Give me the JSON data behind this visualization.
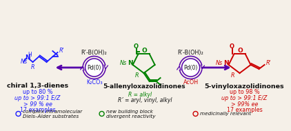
{
  "bg_color": "#f5f0e8",
  "blue_color": "#1a1aff",
  "green_color": "#008000",
  "red_color": "#cc0000",
  "purple_color": "#5500aa",
  "black_color": "#111111",
  "left_title": "chiral 1,3-dienes",
  "left_lines": [
    "up to 80 %",
    "up to > 99:1 E/Z",
    "> 99 % ee",
    "17 examples"
  ],
  "center_title": "5-allenyloxazolidinones",
  "center_line1": "R = alkyl",
  "center_line2": "R’ = aryl, vinyl, alkyl",
  "right_title": "5-vinyloxazolidinones",
  "right_lines": [
    "up to 98 %",
    "up to > 99:1 E/Z",
    "> 99% ee",
    "17 examples"
  ],
  "left_reagent1": "R’-B(OH)₂",
  "left_reagent2": "K₂CO₃",
  "right_reagent1": "R’-B(OH)₂",
  "right_reagent2": "AcOH",
  "pd_label": "Pd(0)",
  "legend_blue_1": "complex intramolecular",
  "legend_blue_2": "Diels–Alder substrates",
  "legend_green_1": "new building block",
  "legend_green_2": "divergent reactivity",
  "legend_red_1": "medicinally relevant"
}
